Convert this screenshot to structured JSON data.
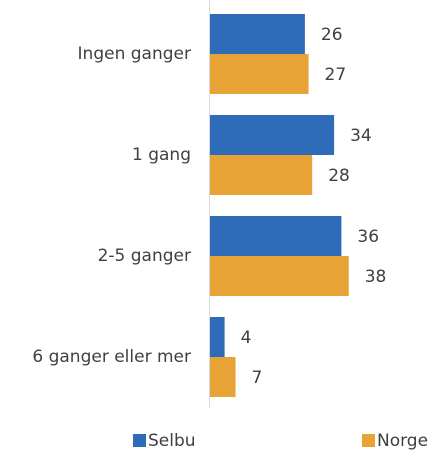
{
  "chart_data": {
    "type": "bar",
    "orientation": "horizontal",
    "categories": [
      "Ingen ganger",
      "1 gang",
      "2-5 ganger",
      "6 ganger eller mer"
    ],
    "series": [
      {
        "name": "Selbu",
        "color": "#2e6bb8",
        "values": [
          26,
          34,
          36,
          4
        ]
      },
      {
        "name": "Norge",
        "color": "#e8a337",
        "values": [
          27,
          28,
          38,
          7
        ]
      }
    ],
    "legend": "bottom"
  }
}
